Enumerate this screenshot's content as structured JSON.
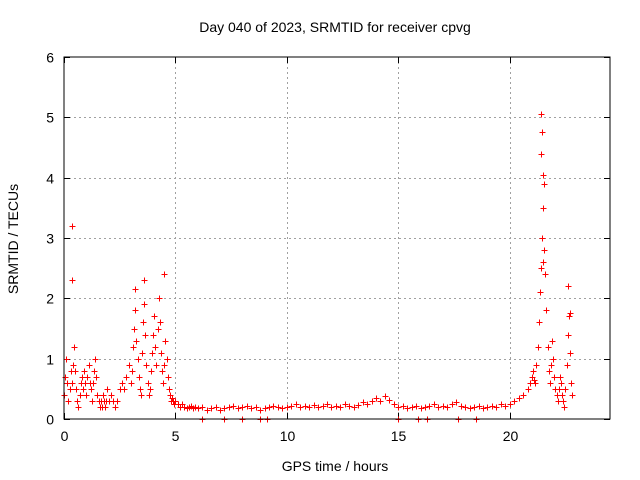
{
  "chart_data": {
    "type": "scatter",
    "title": "Day 040 of 2023, SRMTID for receiver cpvg",
    "xlabel": "GPS time / hours",
    "ylabel": "SRMTID / TECUs",
    "xlim": [
      0,
      24.5
    ],
    "ylim": [
      0,
      6
    ],
    "x_ticks": [
      0,
      5,
      10,
      15,
      20
    ],
    "y_ticks": [
      0,
      1,
      2,
      3,
      4,
      5,
      6
    ],
    "grid": true,
    "marker": "plus",
    "series_color": "#ff0000",
    "series": [
      {
        "name": "SRMTID",
        "x": [
          0.0,
          0.05,
          0.1,
          0.15,
          0.2,
          0.25,
          0.3,
          0.35,
          0.4,
          0.45,
          0.5,
          0.55,
          0.6,
          0.65,
          0.7,
          0.75,
          0.8,
          0.85,
          0.9,
          0.95,
          1.0,
          1.05,
          1.1,
          1.15,
          1.2,
          1.25,
          1.3,
          1.35,
          1.4,
          1.45,
          1.5,
          1.55,
          1.6,
          1.65,
          1.7,
          1.75,
          1.8,
          1.85,
          1.9,
          1.95,
          2.0,
          2.1,
          2.2,
          2.3,
          2.4,
          2.5,
          2.6,
          2.7,
          2.8,
          2.9,
          3.0,
          3.05,
          3.1,
          3.15,
          3.2,
          3.25,
          3.3,
          3.35,
          3.4,
          3.45,
          3.5,
          3.55,
          3.6,
          3.65,
          3.7,
          3.75,
          3.8,
          3.85,
          3.9,
          3.95,
          4.0,
          4.05,
          4.1,
          4.15,
          4.2,
          4.25,
          4.3,
          4.35,
          4.4,
          4.45,
          4.5,
          4.55,
          4.6,
          4.65,
          4.7,
          4.75,
          4.8,
          4.85,
          4.9,
          4.95,
          5.0,
          5.1,
          5.2,
          5.3,
          5.4,
          5.5,
          5.6,
          5.7,
          5.8,
          5.9,
          6.0,
          6.2,
          6.4,
          6.6,
          6.8,
          7.0,
          7.2,
          7.4,
          7.6,
          7.8,
          8.0,
          8.2,
          8.4,
          8.6,
          8.8,
          9.0,
          9.2,
          9.4,
          9.6,
          9.8,
          10.0,
          10.2,
          10.4,
          10.6,
          10.8,
          11.0,
          11.2,
          11.4,
          11.6,
          11.8,
          12.0,
          12.2,
          12.4,
          12.6,
          12.8,
          13.0,
          13.2,
          13.4,
          13.6,
          13.8,
          14.0,
          14.2,
          14.4,
          14.6,
          14.8,
          15.0,
          15.2,
          15.4,
          15.6,
          15.8,
          16.0,
          16.2,
          16.4,
          16.6,
          16.8,
          17.0,
          17.2,
          17.4,
          17.6,
          17.8,
          18.0,
          18.2,
          18.4,
          18.6,
          18.8,
          19.0,
          19.2,
          19.4,
          19.6,
          19.8,
          20.0,
          20.2,
          20.4,
          20.6,
          20.8,
          20.9,
          21.0,
          21.05,
          21.1,
          21.15,
          21.2,
          21.25,
          21.3,
          21.35,
          21.4,
          21.45,
          21.5,
          21.55,
          21.6,
          21.65,
          21.7,
          21.75,
          21.8,
          21.85,
          21.9,
          21.95,
          22.0,
          22.05,
          22.1,
          22.15,
          22.2,
          22.25,
          22.3,
          22.35,
          22.4,
          22.45,
          22.5,
          22.55,
          22.6,
          22.65,
          22.7,
          22.75,
          22.8,
          0.35,
          0.38,
          3.2,
          3.6,
          4.5,
          21.4,
          21.45,
          21.42,
          21.55,
          21.5,
          21.48,
          6.2,
          7.2,
          8.0,
          8.8,
          9.1,
          15.0,
          15.9,
          16.3,
          17.7,
          18.5,
          22.6,
          22.7
        ],
        "y": [
          0.4,
          0.7,
          1.0,
          0.6,
          0.3,
          0.5,
          0.8,
          0.6,
          0.9,
          1.2,
          0.8,
          0.5,
          0.3,
          0.2,
          0.4,
          0.6,
          0.7,
          0.5,
          0.8,
          0.6,
          0.4,
          0.7,
          0.9,
          0.6,
          0.5,
          0.3,
          0.6,
          0.8,
          1.0,
          0.7,
          0.4,
          0.3,
          0.2,
          0.3,
          0.2,
          0.4,
          0.3,
          0.2,
          0.3,
          0.5,
          0.3,
          0.4,
          0.3,
          0.2,
          0.3,
          0.5,
          0.6,
          0.5,
          0.7,
          0.9,
          0.6,
          0.8,
          1.2,
          1.5,
          1.8,
          1.3,
          1.0,
          0.7,
          0.5,
          0.4,
          1.1,
          1.6,
          1.9,
          1.4,
          0.9,
          0.6,
          0.4,
          0.5,
          0.8,
          1.1,
          1.4,
          1.7,
          1.2,
          0.9,
          1.5,
          2.0,
          1.6,
          1.1,
          0.8,
          0.6,
          0.9,
          1.3,
          1.0,
          0.7,
          0.5,
          0.4,
          0.3,
          0.35,
          0.3,
          0.25,
          0.3,
          0.25,
          0.2,
          0.25,
          0.2,
          0.18,
          0.2,
          0.22,
          0.18,
          0.2,
          0.18,
          0.2,
          0.15,
          0.18,
          0.2,
          0.15,
          0.18,
          0.2,
          0.22,
          0.18,
          0.2,
          0.22,
          0.18,
          0.2,
          0.15,
          0.18,
          0.2,
          0.22,
          0.2,
          0.18,
          0.2,
          0.22,
          0.25,
          0.2,
          0.22,
          0.2,
          0.24,
          0.2,
          0.22,
          0.25,
          0.2,
          0.22,
          0.2,
          0.25,
          0.22,
          0.2,
          0.24,
          0.28,
          0.25,
          0.3,
          0.35,
          0.3,
          0.38,
          0.32,
          0.25,
          0.2,
          0.22,
          0.18,
          0.2,
          0.22,
          0.18,
          0.2,
          0.22,
          0.25,
          0.2,
          0.22,
          0.2,
          0.25,
          0.28,
          0.22,
          0.2,
          0.18,
          0.2,
          0.22,
          0.18,
          0.2,
          0.22,
          0.2,
          0.25,
          0.22,
          0.25,
          0.3,
          0.35,
          0.4,
          0.5,
          0.6,
          0.7,
          0.8,
          0.65,
          0.6,
          0.9,
          1.2,
          1.6,
          2.1,
          2.5,
          3.0,
          3.5,
          2.8,
          2.4,
          1.8,
          1.2,
          0.8,
          0.6,
          0.9,
          1.3,
          1.0,
          0.7,
          0.5,
          0.4,
          0.3,
          0.5,
          0.7,
          0.6,
          0.4,
          0.3,
          0.2,
          0.5,
          0.9,
          1.4,
          1.7,
          1.1,
          0.6,
          0.4,
          3.2,
          2.3,
          2.15,
          2.3,
          2.4,
          5.05,
          4.75,
          4.4,
          3.9,
          4.05,
          2.6,
          0.0,
          0.0,
          0.0,
          0.0,
          0.0,
          0.0,
          0.0,
          0.0,
          0.0,
          0.0,
          2.2,
          1.75
        ]
      }
    ]
  }
}
